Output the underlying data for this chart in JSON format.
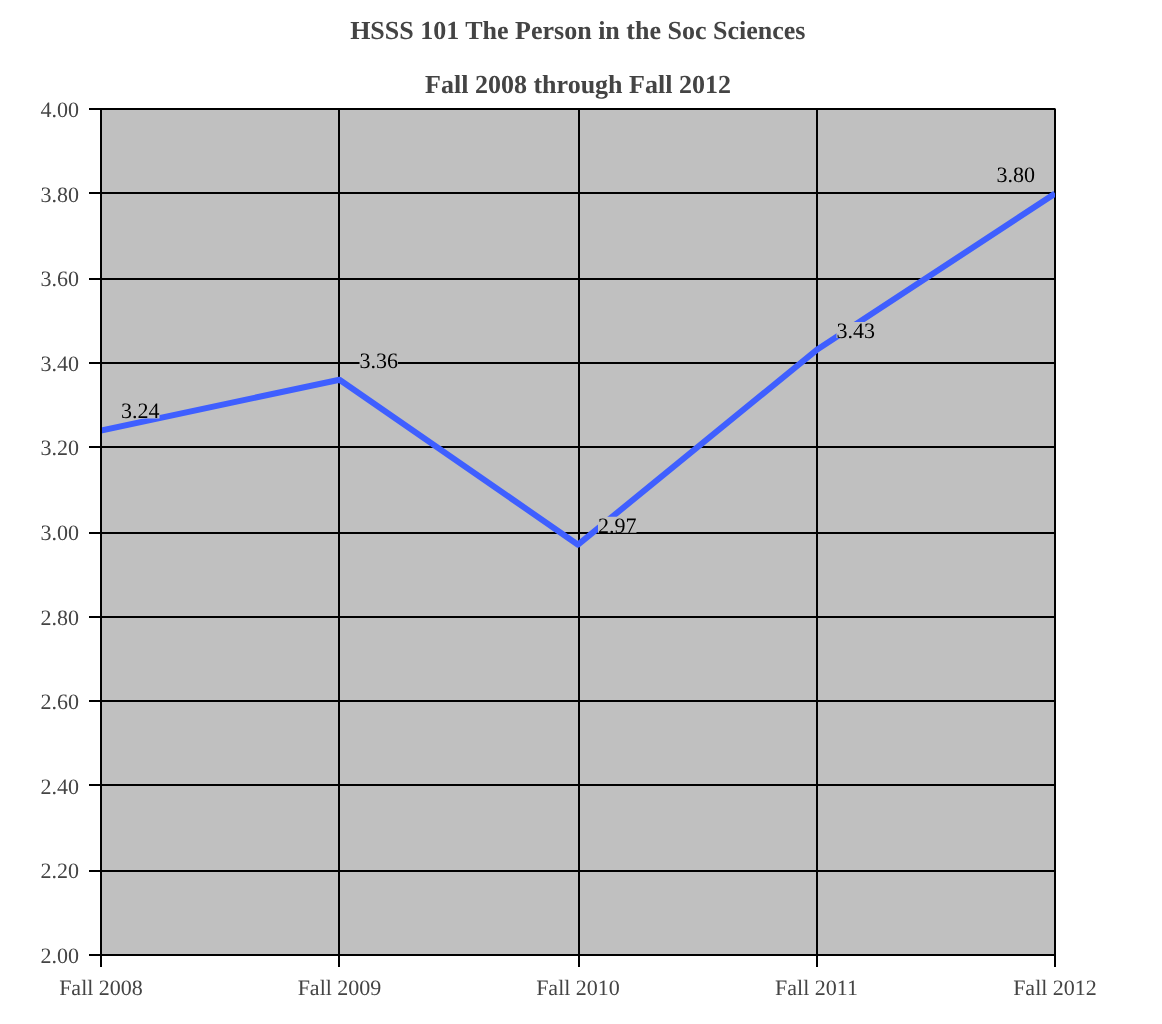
{
  "chart_data": {
    "type": "line",
    "title": "HSSS 101 The Person in the Soc Sciences",
    "subtitle": "Fall 2008 through Fall 2012",
    "categories": [
      "Fall 2008",
      "Fall 2009",
      "Fall 2010",
      "Fall 2011",
      "Fall 2012"
    ],
    "series": [
      {
        "color": "#3f5fff",
        "values": [
          3.24,
          3.36,
          2.97,
          3.43,
          3.8
        ],
        "value_labels": [
          "3.24",
          "3.36",
          "2.97",
          "3.43",
          "3.80"
        ]
      }
    ],
    "ylim": [
      2.0,
      4.0
    ],
    "yticks": [
      {
        "value": 2.0,
        "label": "2.00"
      },
      {
        "value": 2.2,
        "label": "2.20"
      },
      {
        "value": 2.4,
        "label": "2.40"
      },
      {
        "value": 2.6,
        "label": "2.60"
      },
      {
        "value": 2.8,
        "label": "2.80"
      },
      {
        "value": 3.0,
        "label": "3.00"
      },
      {
        "value": 3.2,
        "label": "3.20"
      },
      {
        "value": 3.4,
        "label": "3.40"
      },
      {
        "value": 3.6,
        "label": "3.60"
      },
      {
        "value": 3.8,
        "label": "3.80"
      },
      {
        "value": 4.0,
        "label": "4.00"
      }
    ],
    "grid": true,
    "marker": "none",
    "line_style": "solid"
  }
}
